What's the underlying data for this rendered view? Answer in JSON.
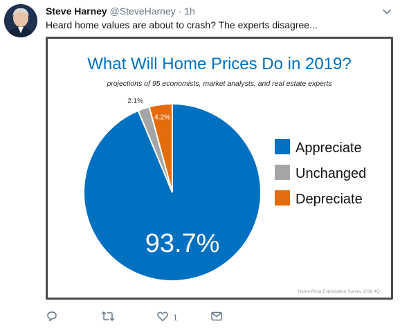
{
  "tweet": {
    "author_name": "Steve Harney",
    "author_handle": "@SteveHarney",
    "separator": "·",
    "time": "1h",
    "text": "Heard home values are about to crash? The experts disagree...",
    "like_count": "1"
  },
  "image_card": {
    "title": "What Will Home Prices Do in 2019?",
    "subtitle": "projections of 95 economists, market analysts, and real estate experts",
    "footer_source": "Home Price Expectation Survey 2018 4Q"
  },
  "chart_data": {
    "type": "pie",
    "title": "What Will Home Prices Do in 2019?",
    "subtitle": "projections of 95 economists, market analysts, and real estate experts",
    "categories": [
      "Appreciate",
      "Unchanged",
      "Depreciate"
    ],
    "values": [
      93.7,
      2.1,
      4.2
    ],
    "labels": [
      "93.7%",
      "2.1%",
      "4.2%"
    ],
    "colors": [
      "#0070c0",
      "#a5a5a5",
      "#e46c0a"
    ],
    "legend_position": "right"
  },
  "icons": {
    "reply": "reply-icon",
    "retweet": "retweet-icon",
    "like": "like-icon",
    "dm": "mail-icon",
    "caret": "chevron-down-icon"
  }
}
